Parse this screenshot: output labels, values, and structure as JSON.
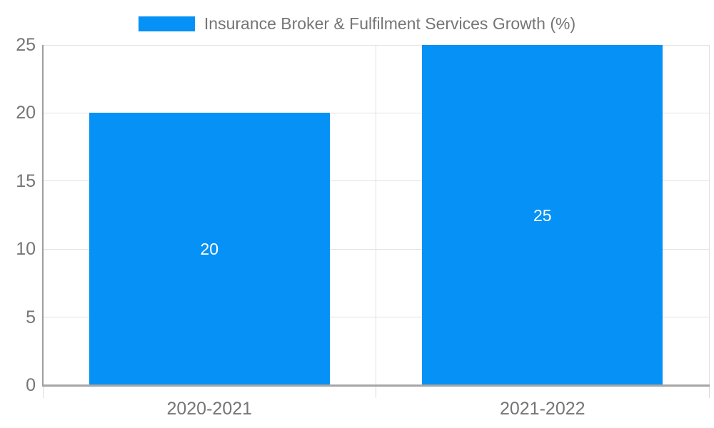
{
  "chart_data": {
    "type": "bar",
    "title": "Insurance Broker & Fulfilment Services Growth (%)",
    "legend": {
      "position": "top",
      "entries": [
        {
          "label": "Insurance Broker & Fulfilment Services Growth (%)",
          "color": "#0591f5"
        }
      ]
    },
    "categories": [
      "2020-2021",
      "2021-2022"
    ],
    "series": [
      {
        "name": "Insurance Broker & Fulfilment Services Growth (%)",
        "values": [
          20,
          25
        ]
      }
    ],
    "data_labels": [
      "20",
      "25"
    ],
    "xlabel": "",
    "ylabel": "",
    "ylim": [
      0,
      25
    ],
    "yticks": [
      0,
      5,
      10,
      15,
      20,
      25
    ],
    "grid": true,
    "colors": {
      "bar": "#0591f5",
      "gridline": "#e2e2e2",
      "axis": "#a6a6a6",
      "tick_text": "#757575",
      "bar_label_text": "#ffffff",
      "background": "#ffffff"
    }
  }
}
